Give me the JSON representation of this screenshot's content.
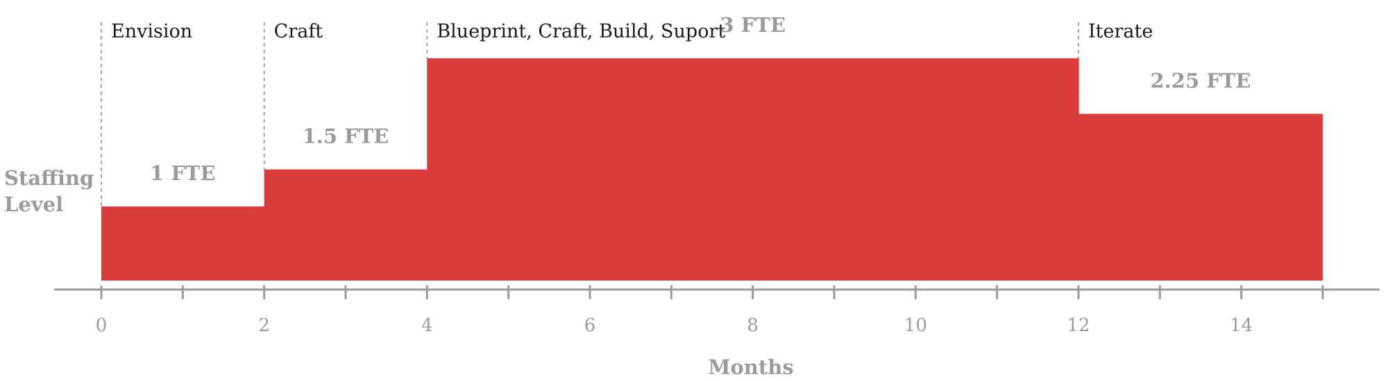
{
  "chart_data": {
    "type": "area",
    "title": "",
    "xlabel": "Months",
    "ylabel_lines": [
      "Staffing",
      "Level"
    ],
    "xlim": [
      0,
      15
    ],
    "ylim": [
      0,
      3.6
    ],
    "ticks_major": [
      0,
      2,
      4,
      6,
      8,
      10,
      12,
      14
    ],
    "ticks_minor": [
      1,
      3,
      5,
      7,
      9,
      11,
      13,
      15
    ],
    "fill_color": "#d93d3b",
    "axis_color": "#9b9b9b",
    "grid": false,
    "steps": [
      {
        "start": 0,
        "end": 2,
        "value": 1,
        "label": "1 FTE"
      },
      {
        "start": 2,
        "end": 4,
        "value": 1.5,
        "label": "1.5 FTE"
      },
      {
        "start": 4,
        "end": 12,
        "value": 3,
        "label": "3 FTE"
      },
      {
        "start": 12,
        "end": 15,
        "value": 2.25,
        "label": "2.25 FTE"
      }
    ],
    "phases": [
      {
        "start": 0,
        "name": "Envision"
      },
      {
        "start": 2,
        "name": "Craft"
      },
      {
        "start": 4,
        "name": "Blueprint, Craft, Build, Suport"
      },
      {
        "start": 12,
        "name": "Iterate"
      }
    ]
  }
}
